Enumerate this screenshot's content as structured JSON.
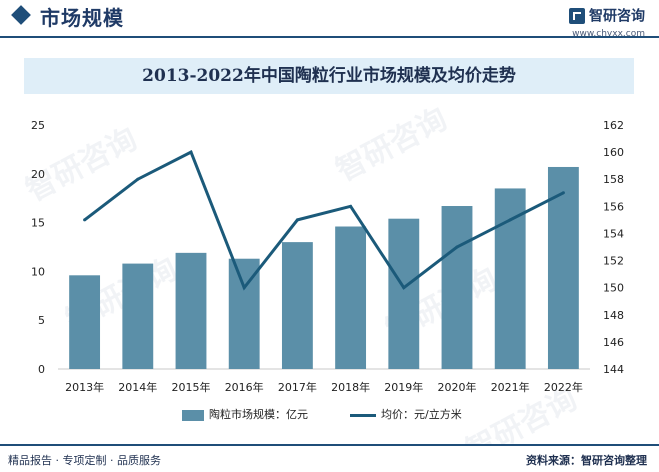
{
  "header": {
    "title": "市场规模",
    "brand_name": "智研咨询",
    "brand_url": "www.chyxx.com"
  },
  "footer": {
    "left_text": "精品报告 · 专项定制 · 品质服务",
    "source_text": "资料来源：智研咨询整理"
  },
  "watermark_text": "智研咨询",
  "colors": {
    "bar": "#5b8fa8",
    "line": "#1b5a7a",
    "title_bg": "#dfeef8",
    "accent": "#1f4e79"
  },
  "chart_data": {
    "type": "bar",
    "title": "2013-2022年中国陶粒行业市场规模及均价走势",
    "categories": [
      "2013年",
      "2014年",
      "2015年",
      "2016年",
      "2017年",
      "2018年",
      "2019年",
      "2020年",
      "2021年",
      "2022年"
    ],
    "series": [
      {
        "name": "陶粒市场规模：亿元",
        "type": "bar",
        "axis": "left",
        "values": [
          9.6,
          10.8,
          11.9,
          11.3,
          13.0,
          14.6,
          15.4,
          16.7,
          18.5,
          20.7
        ]
      },
      {
        "name": "均价：元/立方米",
        "type": "line",
        "axis": "right",
        "values": [
          155,
          158,
          160,
          150,
          155,
          156,
          150,
          153,
          155,
          157
        ]
      }
    ],
    "left_axis": {
      "min": 0,
      "max": 25,
      "ticks": [
        0,
        5,
        10,
        15,
        20,
        25
      ]
    },
    "right_axis": {
      "min": 144,
      "max": 162,
      "ticks": [
        144,
        146,
        148,
        150,
        152,
        154,
        156,
        158,
        160,
        162
      ]
    },
    "grid": false,
    "legend_position": "bottom"
  }
}
